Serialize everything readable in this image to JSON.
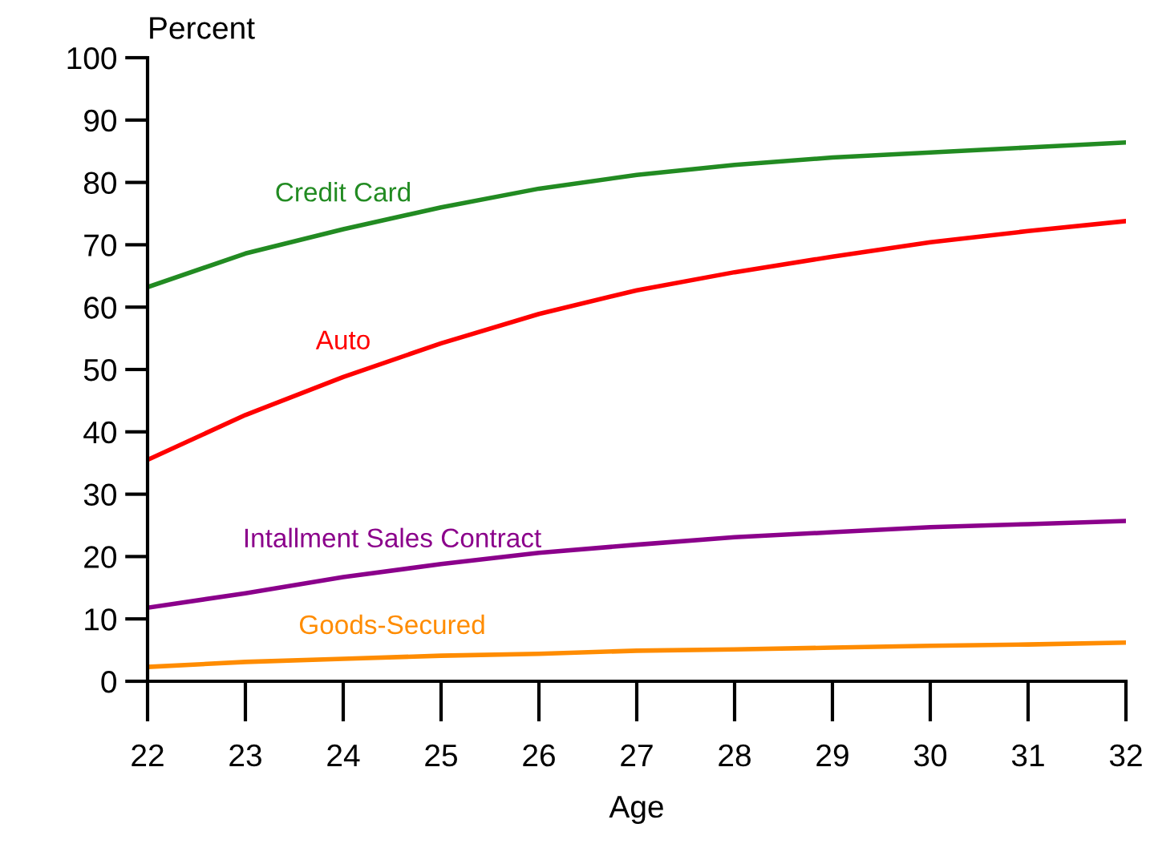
{
  "chart_data": {
    "type": "line",
    "ylabel": "Percent",
    "xlabel": "Age",
    "x": [
      22,
      23,
      24,
      25,
      26,
      27,
      28,
      29,
      30,
      31,
      32
    ],
    "xlim": [
      22,
      32
    ],
    "xticks": [
      22,
      23,
      24,
      25,
      26,
      27,
      28,
      29,
      30,
      31,
      32
    ],
    "ylim": [
      0,
      100
    ],
    "yticks": [
      0,
      10,
      20,
      30,
      40,
      50,
      60,
      70,
      80,
      90,
      100
    ],
    "grid": false,
    "legend": false,
    "marker": "none",
    "line_style": "solid",
    "series": [
      {
        "name": "Credit Card",
        "color": "#228b22",
        "values": [
          63.2,
          68.6,
          72.5,
          76,
          79,
          81.2,
          82.8,
          84,
          84.8,
          85.6,
          86.4
        ]
      },
      {
        "name": "Auto",
        "color": "#ff0000",
        "values": [
          35.5,
          42.7,
          48.8,
          54.2,
          58.9,
          62.7,
          65.6,
          68.1,
          70.4,
          72.2,
          73.8
        ]
      },
      {
        "name": "Intallment Sales Contract",
        "color": "#8b008b",
        "values": [
          11.8,
          14.1,
          16.7,
          18.8,
          20.6,
          21.9,
          23.1,
          23.9,
          24.7,
          25.2,
          25.7
        ]
      },
      {
        "name": "Goods-Secured",
        "color": "#ff8c00",
        "values": [
          2.3,
          3.1,
          3.6,
          4.1,
          4.4,
          4.9,
          5.1,
          5.4,
          5.7,
          5.9,
          6.2
        ]
      }
    ]
  }
}
